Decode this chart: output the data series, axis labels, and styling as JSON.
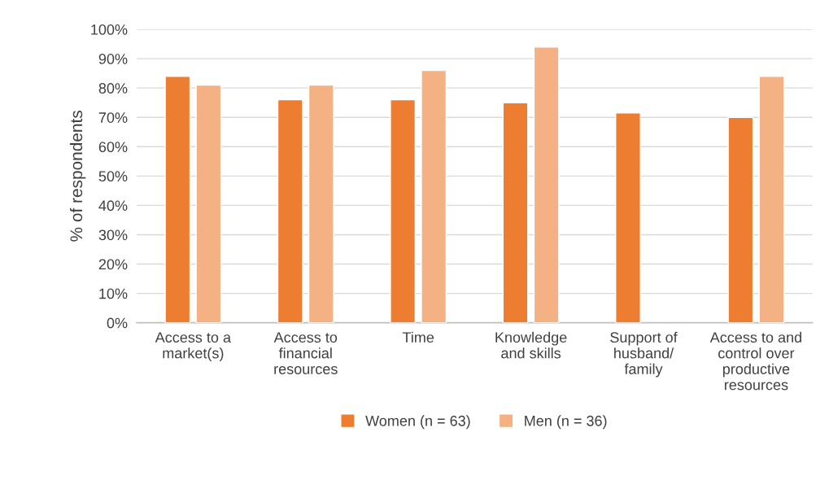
{
  "chart_data": {
    "type": "bar",
    "ylabel": "% of respondents",
    "categories": [
      "Access to a\nmarket(s)",
      "Access to\nfinancial\nresources",
      "Time",
      "Knowledge\nand skills",
      "Support of\nhusband/\nfamily",
      "Access to and\ncontrol over\nproductive\nresources"
    ],
    "series": [
      {
        "name": "Women (n = 63)",
        "color": "#ed7d31",
        "values": [
          84,
          76,
          76,
          75,
          71.5,
          70
        ]
      },
      {
        "name": "Men (n = 36)",
        "color": "#f4b183",
        "values": [
          81,
          81,
          86,
          94,
          null,
          84
        ]
      }
    ],
    "ylim": [
      0,
      100
    ],
    "yticks": [
      {
        "value": 0,
        "label": "0%"
      },
      {
        "value": 10,
        "label": "10%"
      },
      {
        "value": 20,
        "label": "20%"
      },
      {
        "value": 30,
        "label": "30%"
      },
      {
        "value": 40,
        "label": "40%"
      },
      {
        "value": 50,
        "label": "50%"
      },
      {
        "value": 60,
        "label": "60%"
      },
      {
        "value": 70,
        "label": "70%"
      },
      {
        "value": 80,
        "label": "80%"
      },
      {
        "value": 90,
        "label": "90%"
      },
      {
        "value": 100,
        "label": "100%"
      }
    ],
    "grid": "y",
    "legend": "bottom"
  }
}
